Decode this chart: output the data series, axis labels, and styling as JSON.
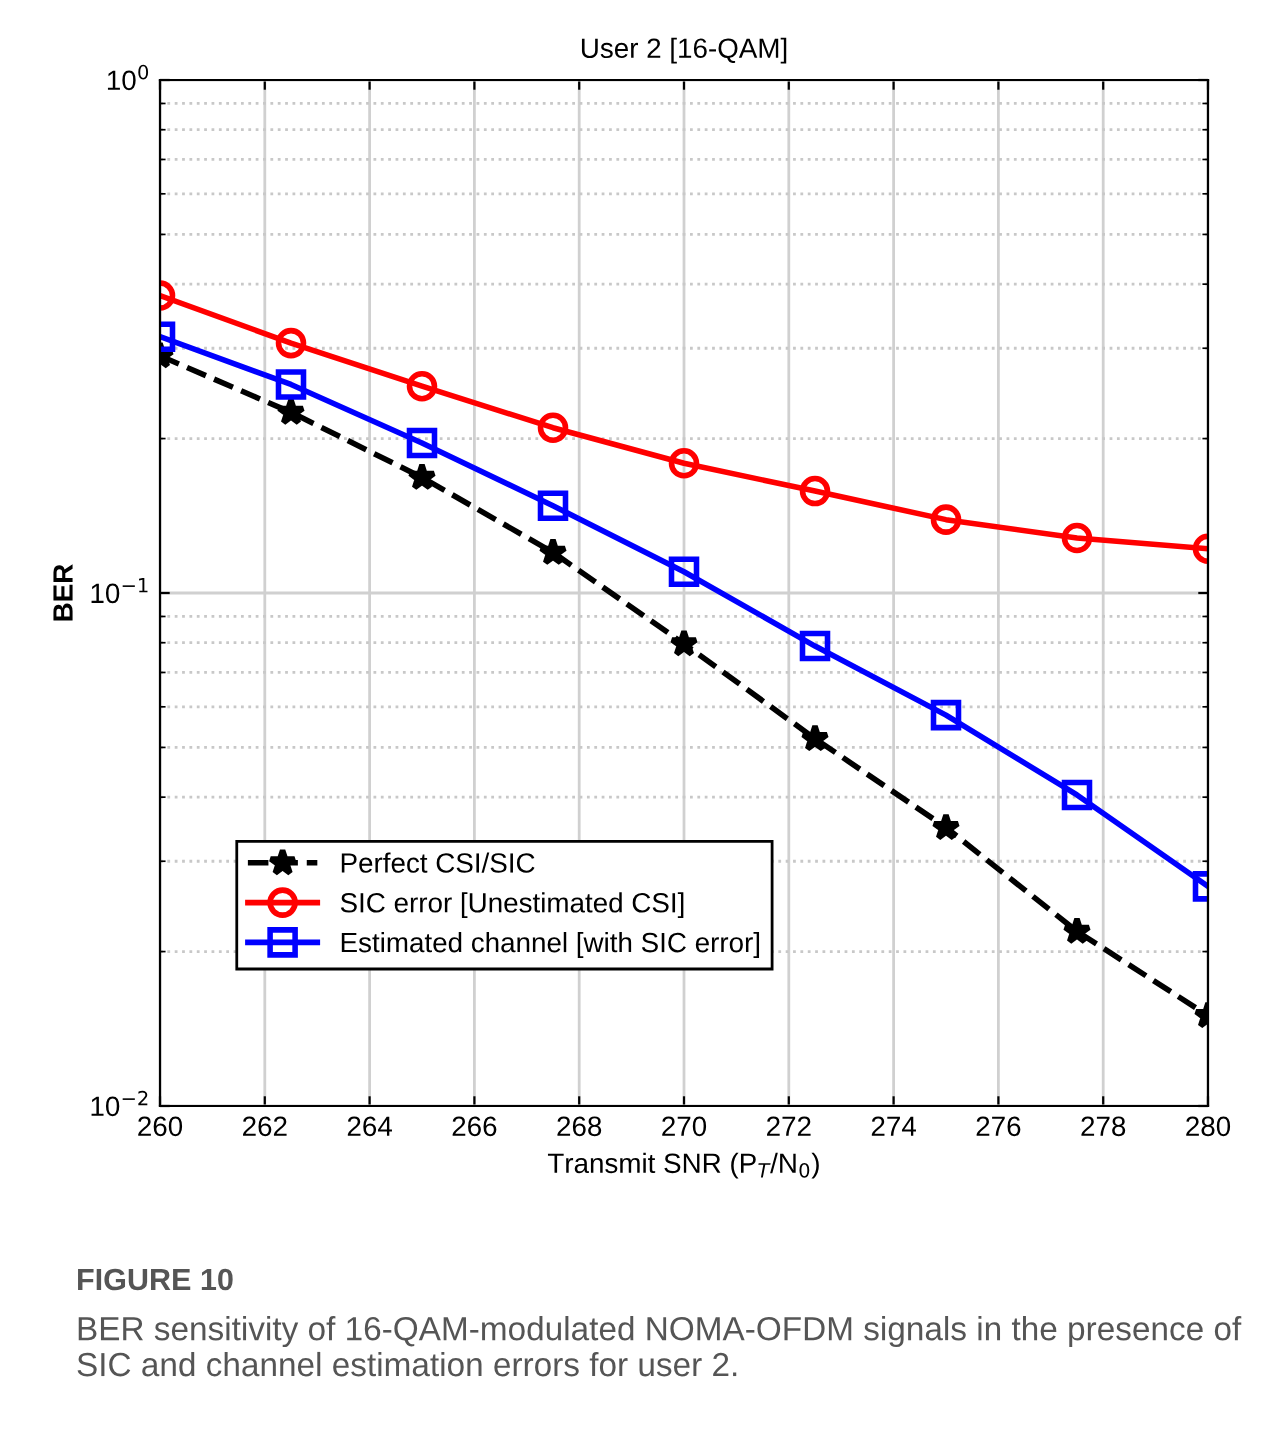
{
  "chart_data": {
    "type": "line",
    "title": "User 2 [16-QAM]",
    "xlabel": "Transmit SNR (P$_{T}$/N$_{0}$)",
    "ylabel": "BER",
    "x": [
      260,
      262.5,
      265,
      267.5,
      270,
      272.5,
      275,
      277.5,
      280
    ],
    "series": [
      {
        "name": "Perfect CSI/SIC",
        "color": "#000000",
        "marker": "star",
        "line_style": "dashed",
        "values": [
          0.29,
          0.225,
          0.168,
          0.12,
          0.0796,
          0.052,
          0.0349,
          0.0219,
          0.015
        ]
      },
      {
        "name": "SIC error [Unestimated CSI]",
        "color": "#ff0000",
        "marker": "circle",
        "line_style": "solid",
        "values": [
          0.38,
          0.307,
          0.253,
          0.21,
          0.179,
          0.158,
          0.139,
          0.128,
          0.122
        ]
      },
      {
        "name": "Estimated channel [with SIC error]",
        "color": "#0000ff",
        "marker": "square",
        "line_style": "solid",
        "values": [
          0.316,
          0.255,
          0.196,
          0.148,
          0.11,
          0.0788,
          0.0578,
          0.0404,
          0.0268
        ]
      }
    ],
    "log": "y",
    "xlim": [
      260,
      280
    ],
    "xticks": [
      260,
      262,
      264,
      266,
      268,
      270,
      272,
      274,
      276,
      278,
      280
    ],
    "ylim": [
      0.01,
      1
    ],
    "yticks": [
      {
        "value": 0.01,
        "label": "10$^{−2}$"
      },
      {
        "value": 0.1,
        "label": "10$^{−1}$"
      },
      {
        "value": 1,
        "label": "10$^{0}$"
      }
    ],
    "grid": true,
    "legend": "bottom left",
    "annotations": [
      "FIGURE 10",
      "BER sensitivity of 16-QAM-modulated NOMA-OFDM signals in the presence of SIC and channel estimation errors for user 2."
    ]
  }
}
